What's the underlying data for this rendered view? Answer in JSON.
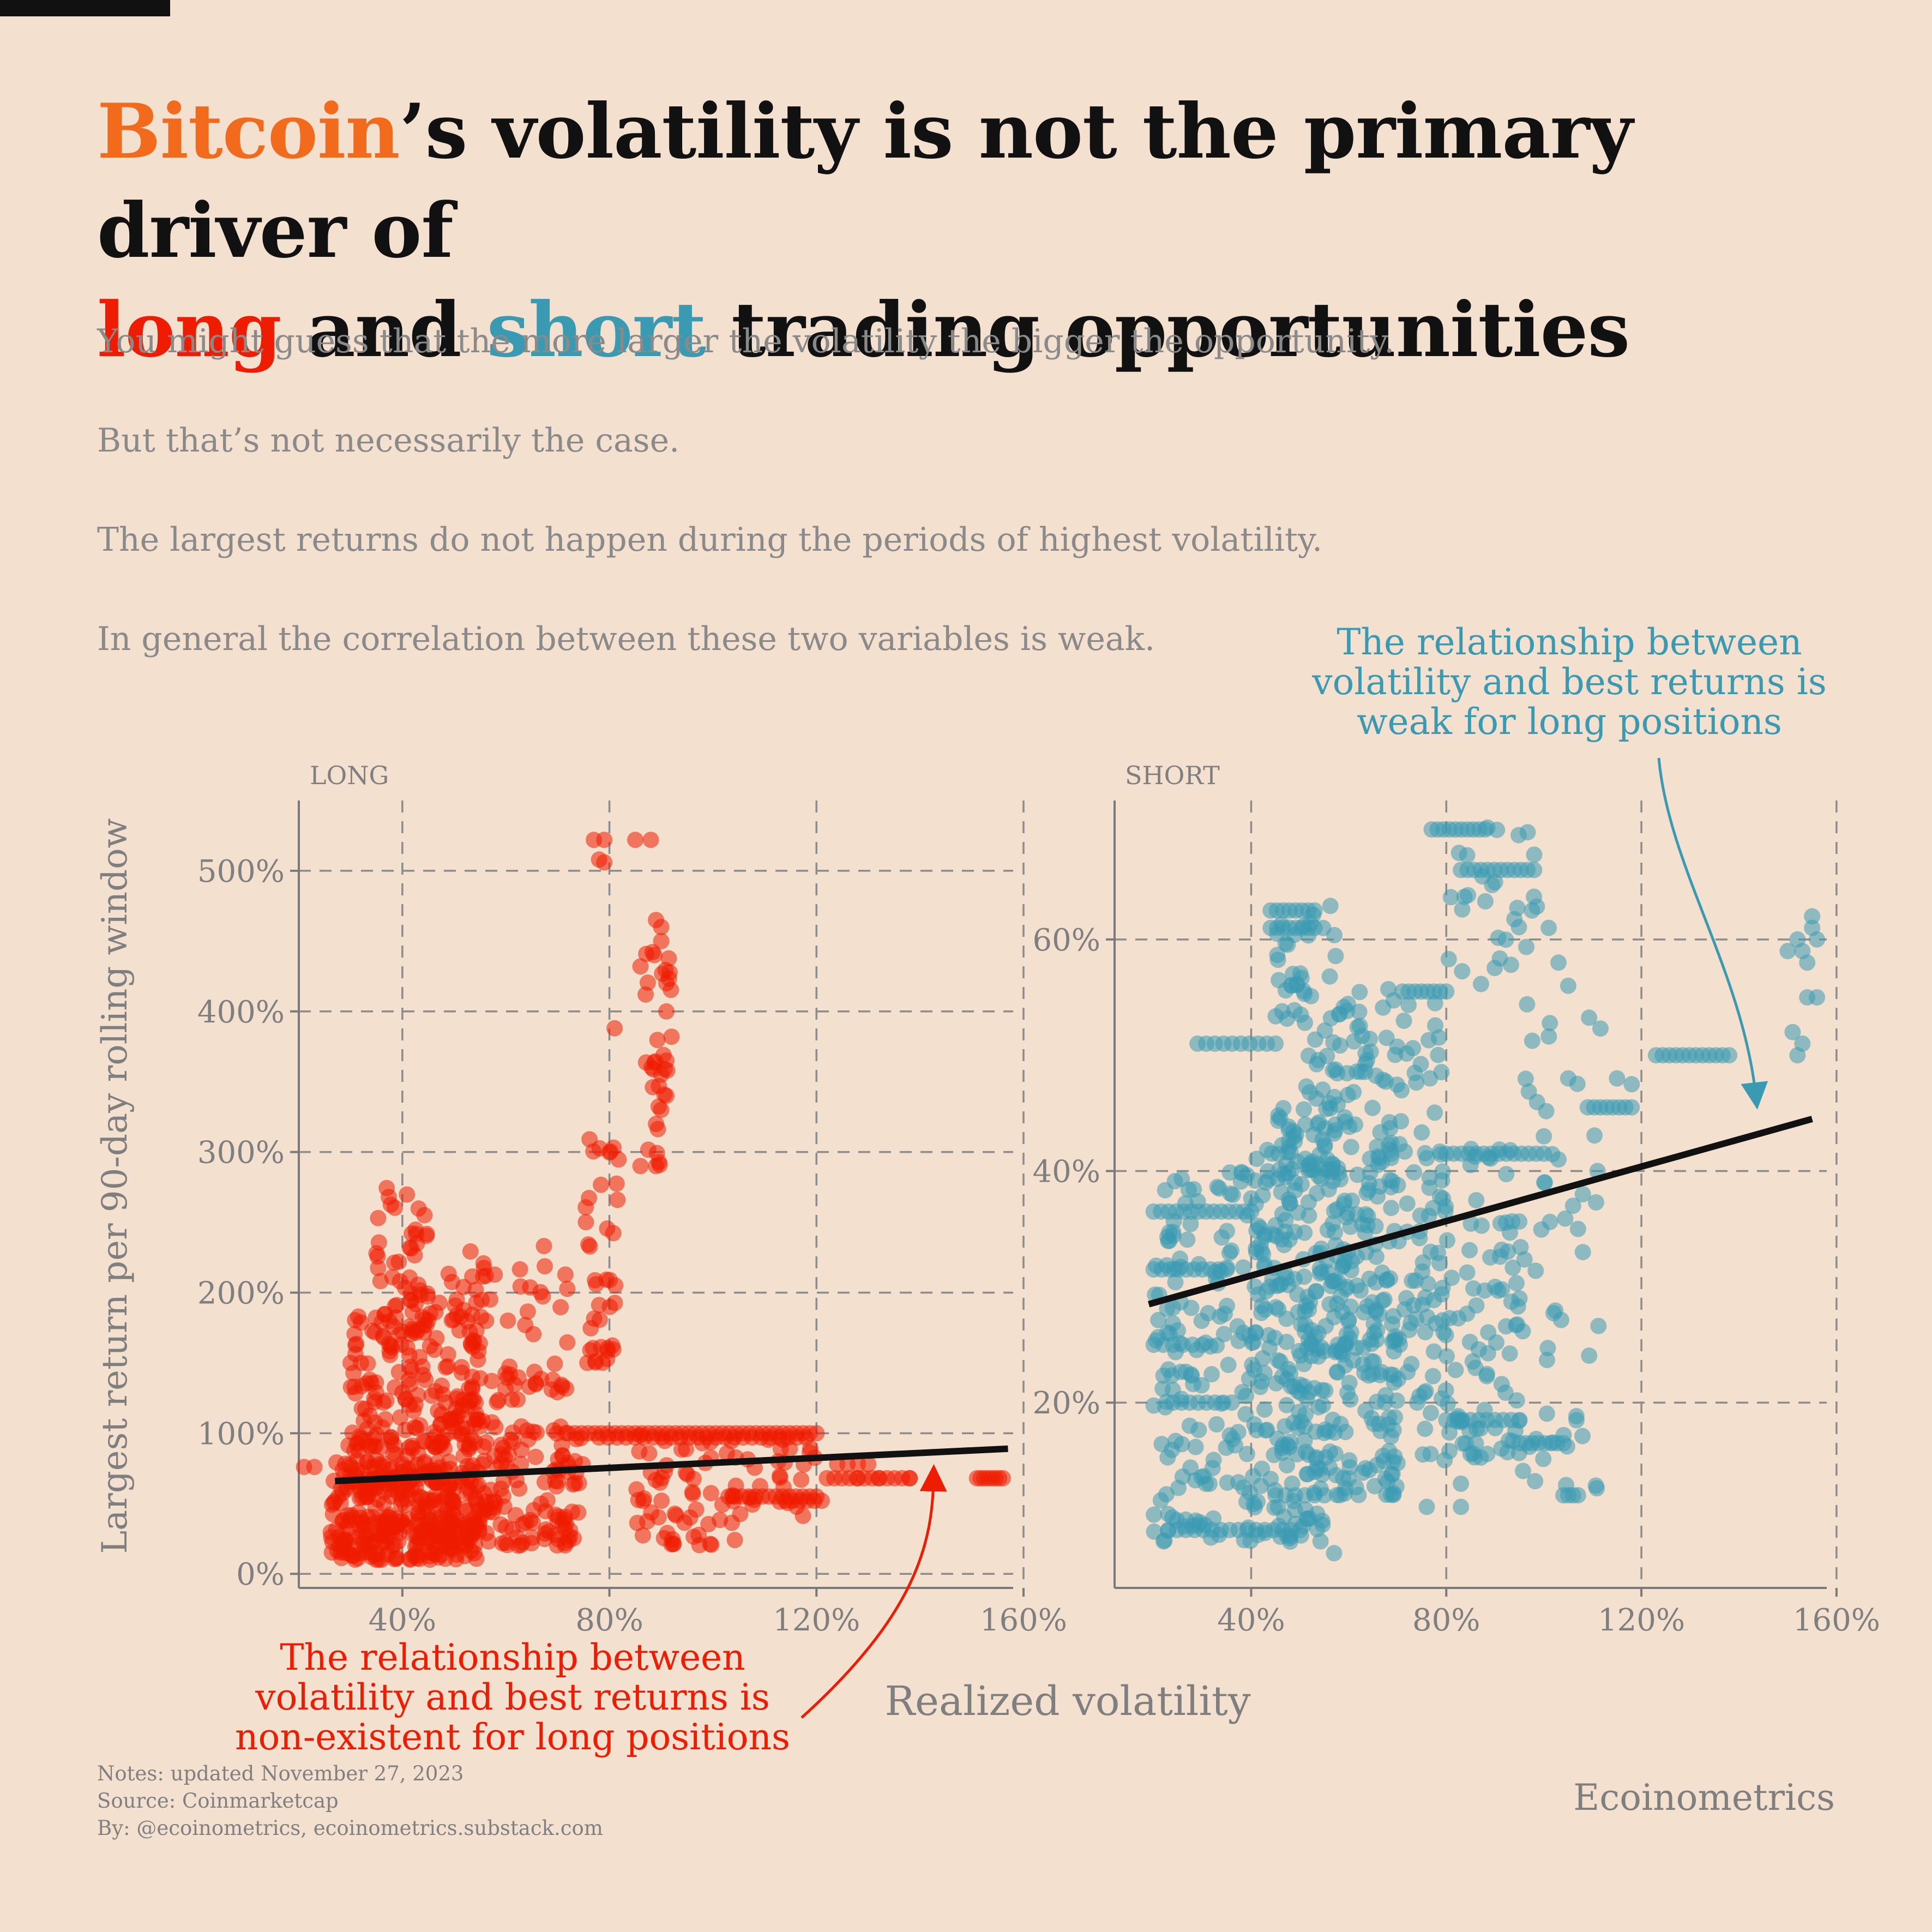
{
  "title": {
    "w1": "Bitcoin",
    "w2": "’s volatility is not the primary driver of",
    "w3": "long",
    "w4": " and ",
    "w5": "short",
    "w6": " trading opportunities"
  },
  "subtitle": [
    "You might guess that the more larger the volatility the bigger the opportunity.",
    "But that’s not necessarily the case.",
    "The largest returns do not happen during the periods of highest volatility.",
    "In general the correlation between these two variables is weak."
  ],
  "colors": {
    "background": "#f3e0cf",
    "bitcoin_orange": "#f26a1b",
    "long_red": "#ee1c00",
    "short_teal": "#3a9ab2",
    "trend_black": "#111111",
    "grid": "#8c8c8c"
  },
  "chart_data": [
    {
      "type": "scatter",
      "panel_label": "LONG",
      "xlim": [
        20,
        158
      ],
      "ylim": [
        -10,
        550
      ],
      "x_ticks": [
        40,
        80,
        120,
        160
      ],
      "x_tick_labels": [
        "40%",
        "80%",
        "120%",
        "160%"
      ],
      "y_ticks": [
        0,
        100,
        200,
        300,
        400,
        500
      ],
      "y_tick_labels": [
        "0%",
        "100%",
        "200%",
        "300%",
        "400%",
        "500%"
      ],
      "trend": [
        [
          27,
          66
        ],
        [
          157,
          89
        ]
      ],
      "clusters": [
        {
          "x": [
            26,
            55
          ],
          "y": [
            10,
            80
          ],
          "n": 260
        },
        {
          "x": [
            28,
            75
          ],
          "y": [
            20,
            100
          ],
          "n": 240
        },
        {
          "x": [
            30,
            56
          ],
          "y": [
            90,
            190
          ],
          "n": 150
        },
        {
          "x": [
            34,
            45
          ],
          "y": [
            170,
            275
          ],
          "n": 55
        },
        {
          "x": [
            46,
            72
          ],
          "y": [
            100,
            235
          ],
          "n": 90
        },
        {
          "x": [
            75,
            82
          ],
          "y": [
            150,
            310
          ],
          "n": 40
        },
        {
          "x": [
            85,
            105
          ],
          "y": [
            20,
            100
          ],
          "n": 60
        },
        {
          "x": [
            105,
            120
          ],
          "y": [
            40,
            100
          ],
          "n": 25
        },
        {
          "x": [
            87,
            92
          ],
          "y": [
            290,
            470
          ],
          "n": 28
        }
      ],
      "rows": [
        {
          "y": 100,
          "x": [
            72,
            120
          ],
          "n": 38
        },
        {
          "y": 97,
          "x": [
            78,
            118
          ],
          "n": 24
        },
        {
          "y": 68,
          "x": [
            122,
            138
          ],
          "n": 12
        },
        {
          "y": 68,
          "x": [
            151,
            156
          ],
          "n": 8
        },
        {
          "y": 78,
          "x": [
            124,
            130
          ],
          "n": 4
        },
        {
          "y": 55,
          "x": [
            103,
            120
          ],
          "n": 14
        },
        {
          "y": 52,
          "x": [
            114,
            121
          ],
          "n": 6
        }
      ],
      "points": [
        [
          77,
          522
        ],
        [
          79,
          522
        ],
        [
          85,
          522
        ],
        [
          88,
          522
        ],
        [
          78,
          508
        ],
        [
          79,
          506
        ],
        [
          81,
          388
        ],
        [
          89,
          290
        ],
        [
          86,
          290
        ],
        [
          89,
          465
        ],
        [
          90,
          460
        ],
        [
          90,
          450
        ],
        [
          91,
          420
        ],
        [
          91,
          400
        ],
        [
          92,
          382
        ],
        [
          91,
          365
        ],
        [
          90,
          355
        ],
        [
          91,
          340
        ],
        [
          90,
          330
        ],
        [
          89,
          320
        ],
        [
          86,
          432
        ],
        [
          87,
          412
        ],
        [
          30,
          150
        ],
        [
          32,
          150
        ],
        [
          21,
          76
        ],
        [
          23,
          76
        ],
        [
          138,
          68
        ],
        [
          132,
          68
        ],
        [
          128,
          68
        ]
      ]
    },
    {
      "type": "scatter",
      "panel_label": "SHORT",
      "xlim": [
        12,
        158
      ],
      "ylim": [
        4,
        72
      ],
      "x_ticks": [
        40,
        80,
        120,
        160
      ],
      "x_tick_labels": [
        "40%",
        "80%",
        "120%",
        "160%"
      ],
      "y_ticks": [
        20,
        40,
        60
      ],
      "y_tick_labels": [
        "20%",
        "40%",
        "60%"
      ],
      "trend": [
        [
          19,
          28.5
        ],
        [
          155,
          44.5
        ]
      ],
      "clusters": [
        {
          "x": [
            20,
            55
          ],
          "y": [
            8,
            40
          ],
          "n": 250
        },
        {
          "x": [
            40,
            70
          ],
          "y": [
            12,
            45
          ],
          "n": 260
        },
        {
          "x": [
            45,
            58
          ],
          "y": [
            40,
            63
          ],
          "n": 80
        },
        {
          "x": [
            55,
            80
          ],
          "y": [
            22,
            56
          ],
          "n": 160
        },
        {
          "x": [
            74,
            95
          ],
          "y": [
            15,
            42
          ],
          "n": 110
        },
        {
          "x": [
            80,
            100
          ],
          "y": [
            55,
            70
          ],
          "n": 30
        },
        {
          "x": [
            95,
            112
          ],
          "y": [
            12,
            56
          ],
          "n": 45
        }
      ],
      "rows": [
        {
          "y": 36.5,
          "x": [
            20,
            40
          ],
          "n": 14
        },
        {
          "y": 31.5,
          "x": [
            20,
            35
          ],
          "n": 10
        },
        {
          "y": 51,
          "x": [
            29,
            45
          ],
          "n": 10
        },
        {
          "y": 62.5,
          "x": [
            44,
            53
          ],
          "n": 8
        },
        {
          "y": 61,
          "x": [
            44,
            53
          ],
          "n": 8
        },
        {
          "y": 55.5,
          "x": [
            71,
            80
          ],
          "n": 8
        },
        {
          "y": 69.5,
          "x": [
            77,
            88
          ],
          "n": 10
        },
        {
          "y": 66,
          "x": [
            83,
            98
          ],
          "n": 12
        },
        {
          "y": 41.5,
          "x": [
            80,
            100
          ],
          "n": 14
        },
        {
          "y": 18.5,
          "x": [
            80,
            95
          ],
          "n": 10
        },
        {
          "y": 16.5,
          "x": [
            95,
            104
          ],
          "n": 8
        },
        {
          "y": 50,
          "x": [
            123,
            138
          ],
          "n": 12
        },
        {
          "y": 45.5,
          "x": [
            109,
            118
          ],
          "n": 8
        },
        {
          "y": 9,
          "x": [
            23,
            50
          ],
          "n": 16
        },
        {
          "y": 12,
          "x": [
            45,
            55
          ],
          "n": 6
        },
        {
          "y": 12,
          "x": [
            104,
            107
          ],
          "n": 4
        },
        {
          "y": 25,
          "x": [
            20,
            30
          ],
          "n": 6
        },
        {
          "y": 20,
          "x": [
            24,
            36
          ],
          "n": 8
        }
      ],
      "points": [
        [
          152,
          60
        ],
        [
          153,
          59
        ],
        [
          155,
          61
        ],
        [
          156,
          60
        ],
        [
          155,
          62
        ],
        [
          154,
          58
        ],
        [
          154,
          55
        ],
        [
          152,
          50
        ],
        [
          153,
          51
        ],
        [
          151,
          52
        ],
        [
          150,
          59
        ],
        [
          156,
          55
        ],
        [
          101,
          61
        ],
        [
          103,
          58
        ],
        [
          105,
          56
        ],
        [
          111,
          40
        ],
        [
          108,
          38
        ],
        [
          106,
          37
        ],
        [
          107,
          35
        ],
        [
          108,
          33
        ],
        [
          105,
          48
        ],
        [
          100,
          43
        ],
        [
          103,
          41
        ],
        [
          115,
          48
        ],
        [
          118,
          47.5
        ],
        [
          57,
          7
        ],
        [
          48,
          8
        ],
        [
          52,
          10
        ],
        [
          90,
          30
        ],
        [
          83,
          11
        ],
        [
          83,
          13
        ],
        [
          76,
          11
        ],
        [
          86,
          23
        ],
        [
          95,
          29
        ]
      ]
    }
  ],
  "labels": {
    "long_panel": "LONG",
    "short_panel": "SHORT",
    "y_axis": "Largest return per 90-day rolling window",
    "x_axis": "Realized volatility",
    "long_annotation": [
      "The relationship between",
      "volatility and best returns is",
      "non-existent for long positions"
    ],
    "short_annotation": [
      "The relationship between",
      "volatility and best returns is",
      "weak for long positions"
    ]
  },
  "footer": {
    "notes": "Notes: updated November 27, 2023",
    "source": "Source: Coinmarketcap",
    "by": "By: @ecoinometrics, ecoinometrics.substack.com",
    "brand": "Ecoinometrics"
  }
}
